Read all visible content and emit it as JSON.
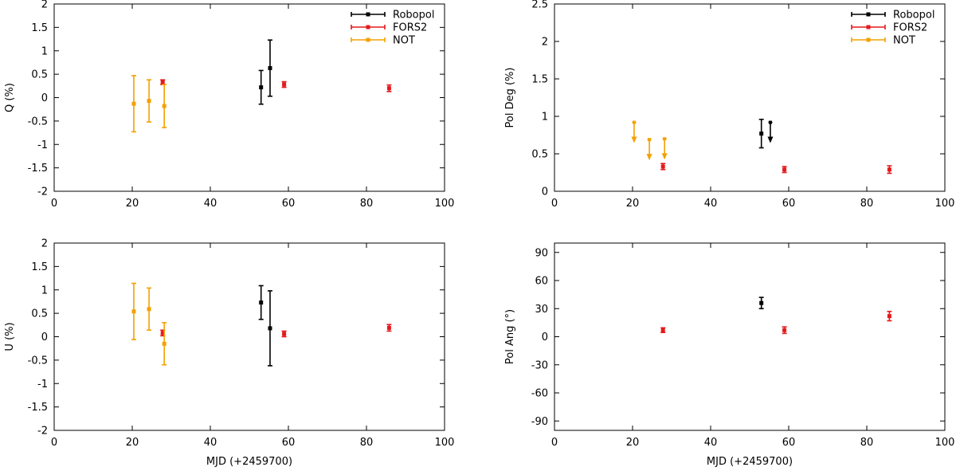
{
  "colors": {
    "Robopol": "#000000",
    "FORS2": "#e41a1c",
    "NOT": "#f5a000"
  },
  "chart_data": [
    {
      "id": "q",
      "type": "scatter",
      "title": "",
      "xlabel": "",
      "ylabel": "Q (%)",
      "xlim": [
        0,
        100
      ],
      "ylim": [
        -2,
        2
      ],
      "xticks": [
        0,
        20,
        40,
        60,
        80,
        100
      ],
      "yticks": [
        -2,
        -1.5,
        -1,
        -0.5,
        0,
        0.5,
        1,
        1.5,
        2
      ],
      "legend": [
        "Robopol",
        "FORS2",
        "NOT"
      ],
      "series": [
        {
          "name": "Robopol",
          "points": [
            {
              "x": 53.0,
              "y": 0.22,
              "err": 0.36
            },
            {
              "x": 55.3,
              "y": 0.63,
              "err": 0.6
            }
          ]
        },
        {
          "name": "FORS2",
          "points": [
            {
              "x": 27.8,
              "y": 0.33,
              "err": 0.05
            },
            {
              "x": 58.9,
              "y": 0.28,
              "err": 0.06
            },
            {
              "x": 85.8,
              "y": 0.2,
              "err": 0.07
            }
          ]
        },
        {
          "name": "NOT",
          "points": [
            {
              "x": 20.4,
              "y": -0.13,
              "err": 0.6
            },
            {
              "x": 24.3,
              "y": -0.07,
              "err": 0.45
            },
            {
              "x": 28.2,
              "y": -0.18,
              "err": 0.46
            }
          ]
        }
      ]
    },
    {
      "id": "poldeg",
      "type": "scatter",
      "title": "",
      "xlabel": "",
      "ylabel": "Pol Deg (%)",
      "xlim": [
        0,
        100
      ],
      "ylim": [
        0,
        2.5
      ],
      "xticks": [
        0,
        20,
        40,
        60,
        80,
        100
      ],
      "yticks": [
        0,
        0.5,
        1,
        1.5,
        2,
        2.5
      ],
      "legend": [
        "Robopol",
        "FORS2",
        "NOT"
      ],
      "series": [
        {
          "name": "Robopol",
          "points": [
            {
              "x": 53.0,
              "y": 0.77,
              "err": 0.19
            }
          ],
          "upper_limits": [
            {
              "x": 55.3,
              "y": 0.92
            }
          ]
        },
        {
          "name": "FORS2",
          "points": [
            {
              "x": 27.8,
              "y": 0.33,
              "err": 0.04
            },
            {
              "x": 58.9,
              "y": 0.29,
              "err": 0.04
            },
            {
              "x": 85.8,
              "y": 0.29,
              "err": 0.05
            }
          ]
        },
        {
          "name": "NOT",
          "points": [],
          "upper_limits": [
            {
              "x": 20.4,
              "y": 0.92
            },
            {
              "x": 24.3,
              "y": 0.69
            },
            {
              "x": 28.2,
              "y": 0.7
            }
          ]
        }
      ]
    },
    {
      "id": "u",
      "type": "scatter",
      "title": "",
      "xlabel": "MJD (+2459700)",
      "ylabel": "U (%)",
      "xlim": [
        0,
        100
      ],
      "ylim": [
        -2,
        2
      ],
      "xticks": [
        0,
        20,
        40,
        60,
        80,
        100
      ],
      "yticks": [
        -2,
        -1.5,
        -1,
        -0.5,
        0,
        0.5,
        1,
        1.5,
        2
      ],
      "legend": [],
      "series": [
        {
          "name": "Robopol",
          "points": [
            {
              "x": 53.0,
              "y": 0.73,
              "err": 0.36
            },
            {
              "x": 55.3,
              "y": 0.18,
              "err": 0.8
            }
          ]
        },
        {
          "name": "FORS2",
          "points": [
            {
              "x": 27.8,
              "y": 0.08,
              "err": 0.06
            },
            {
              "x": 58.9,
              "y": 0.06,
              "err": 0.06
            },
            {
              "x": 85.8,
              "y": 0.19,
              "err": 0.07
            }
          ]
        },
        {
          "name": "NOT",
          "points": [
            {
              "x": 20.4,
              "y": 0.54,
              "err": 0.6
            },
            {
              "x": 24.3,
              "y": 0.59,
              "err": 0.45
            },
            {
              "x": 28.2,
              "y": -0.15,
              "err": 0.45
            }
          ]
        }
      ]
    },
    {
      "id": "polang",
      "type": "scatter",
      "title": "",
      "xlabel": "MJD (+2459700)",
      "ylabel": "Pol Ang (°)",
      "xlim": [
        0,
        100
      ],
      "ylim": [
        -100,
        100
      ],
      "xticks": [
        0,
        20,
        40,
        60,
        80,
        100
      ],
      "yticks": [
        -90,
        -60,
        -30,
        0,
        30,
        60,
        90
      ],
      "legend": [],
      "series": [
        {
          "name": "Robopol",
          "points": [
            {
              "x": 53.0,
              "y": 36,
              "err": 6
            }
          ]
        },
        {
          "name": "FORS2",
          "points": [
            {
              "x": 27.8,
              "y": 7,
              "err": 2.5
            },
            {
              "x": 58.9,
              "y": 7,
              "err": 3.5
            },
            {
              "x": 85.8,
              "y": 22,
              "err": 5
            }
          ]
        },
        {
          "name": "NOT",
          "points": []
        }
      ]
    }
  ]
}
